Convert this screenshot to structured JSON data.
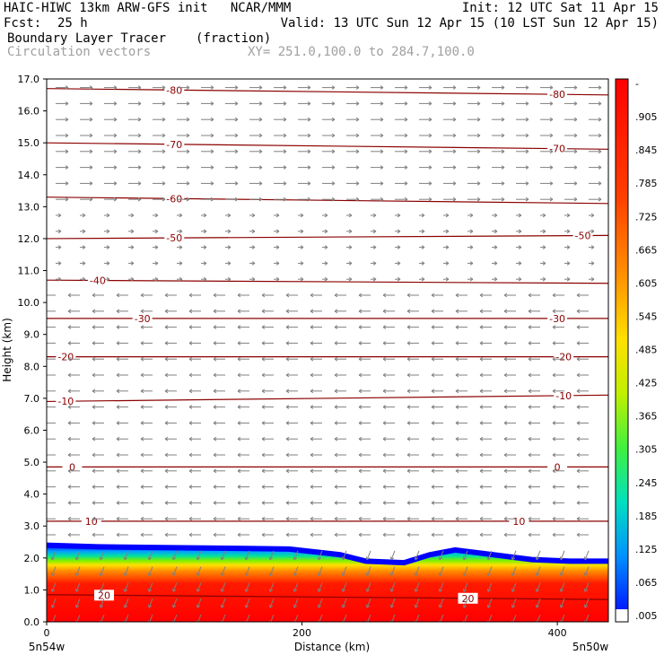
{
  "header": {
    "line1_left": "HAIC-HIWC 13km ARW-GFS init   NCAR/MMM",
    "line1_right": "Init: 12 UTC Sat 11 Apr 15",
    "fcst_label": "Fcst:",
    "fcst_value": "25 h",
    "valid": "Valid: 13 UTC Sun 12 Apr 15 (10 LST Sun 12 Apr 15)",
    "field_name": "Boundary Layer Tracer",
    "field_units": "(fraction)",
    "vector_label": "Circulation vectors",
    "xy_range": "XY= 251.0,100.0 to 284.7,100.0"
  },
  "chart_data": {
    "type": "heatmap",
    "title": "Boundary Layer Tracer",
    "units": "(fraction)",
    "xlabel": "Distance (km)",
    "ylabel": "Height (km)",
    "xlim": [
      0,
      440
    ],
    "ylim": [
      0,
      17
    ],
    "x_ticks": [
      0,
      200,
      400
    ],
    "y_ticks": [
      "0.0",
      "1.0",
      "2.0",
      "3.0",
      "4.0",
      "5.0",
      "6.0",
      "7.0",
      "8.0",
      "9.0",
      "10.0",
      "11.0",
      "12.0",
      "13.0",
      "14.0",
      "15.0",
      "16.0",
      "17.0"
    ],
    "x_end_labels": {
      "left": "5n54w",
      "right": "5n50w"
    },
    "colorbar_labels": [
      "-",
      ".905",
      ".845",
      ".785",
      ".725",
      ".665",
      ".605",
      ".545",
      ".485",
      ".425",
      ".365",
      ".305",
      ".245",
      ".185",
      ".125",
      ".065",
      ".005"
    ],
    "colors": {
      "tracer_low": "#0000ff",
      "tracer_high": "#ff0000",
      "contour": "#8b0000",
      "vector": "#808080"
    },
    "boundary_layer_top_km": [
      [
        0,
        2.4
      ],
      [
        40,
        2.35
      ],
      [
        100,
        2.32
      ],
      [
        150,
        2.3
      ],
      [
        190,
        2.28
      ],
      [
        230,
        2.1
      ],
      [
        250,
        1.9
      ],
      [
        280,
        1.85
      ],
      [
        300,
        2.1
      ],
      [
        320,
        2.25
      ],
      [
        350,
        2.1
      ],
      [
        380,
        1.95
      ],
      [
        410,
        1.9
      ],
      [
        440,
        1.9
      ]
    ],
    "temperature_contours": [
      {
        "label": "-80",
        "level_km_left": 16.7,
        "level_km_right": 16.5,
        "label_x": [
          100,
          400
        ]
      },
      {
        "label": "-70",
        "level_km_left": 15.0,
        "level_km_right": 14.8,
        "label_x": [
          100,
          400
        ]
      },
      {
        "label": "-60",
        "level_km_left": 13.3,
        "level_km_right": 13.1,
        "label_x": [
          100,
          null
        ]
      },
      {
        "label": "-50",
        "level_km_left": 12.0,
        "level_km_right": 12.1,
        "label_x": [
          100,
          420
        ]
      },
      {
        "label": "-40",
        "level_km_left": 10.7,
        "level_km_right": 10.6,
        "label_x": [
          40,
          null
        ]
      },
      {
        "label": "-30",
        "level_km_left": 9.5,
        "level_km_right": 9.5,
        "label_x": [
          75,
          400
        ]
      },
      {
        "label": "-20",
        "level_km_left": 8.3,
        "level_km_right": 8.3,
        "label_x": [
          15,
          405
        ]
      },
      {
        "label": "-10",
        "level_km_left": 6.9,
        "level_km_right": 7.1,
        "label_x": [
          15,
          405
        ]
      },
      {
        "label": "0",
        "level_km_left": 4.85,
        "level_km_right": 4.85,
        "label_x": [
          20,
          400
        ]
      },
      {
        "label": "10",
        "level_km_left": 3.15,
        "level_km_right": 3.15,
        "label_x": [
          35,
          370
        ]
      },
      {
        "label": "20",
        "level_km_left": 0.85,
        "level_km_right": 0.7,
        "label_x": [
          45,
          330
        ]
      }
    ]
  }
}
